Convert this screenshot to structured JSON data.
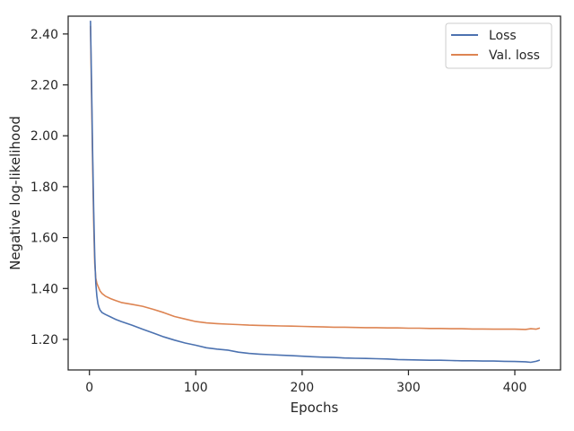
{
  "chart_data": {
    "type": "line",
    "xlabel": "Epochs",
    "ylabel": "Negative log-likelihood",
    "xlim": [
      -20,
      443
    ],
    "ylim": [
      1.08,
      2.47
    ],
    "x_ticks": [
      0,
      100,
      200,
      300,
      400
    ],
    "x_tick_labels": [
      "0",
      "100",
      "200",
      "300",
      "400"
    ],
    "y_ticks": [
      1.2,
      1.4,
      1.6,
      1.8,
      2.0,
      2.2,
      2.4
    ],
    "y_tick_labels": [
      "1.20",
      "1.40",
      "1.60",
      "1.80",
      "2.00",
      "2.20",
      "2.40"
    ],
    "grid": false,
    "legend_position": "top-right",
    "series": [
      {
        "name": "Loss",
        "color": "#4c72b0",
        "x": [
          1,
          2,
          3,
          4,
          5,
          6,
          7,
          8,
          9,
          10,
          12,
          15,
          20,
          25,
          30,
          40,
          50,
          60,
          70,
          80,
          90,
          100,
          110,
          120,
          130,
          140,
          150,
          160,
          170,
          180,
          190,
          200,
          210,
          220,
          230,
          240,
          250,
          260,
          270,
          280,
          290,
          300,
          310,
          320,
          330,
          340,
          350,
          360,
          370,
          380,
          390,
          400,
          410,
          415,
          420,
          423
        ],
        "y": [
          2.45,
          2.2,
          1.93,
          1.7,
          1.53,
          1.42,
          1.37,
          1.34,
          1.325,
          1.315,
          1.305,
          1.298,
          1.288,
          1.278,
          1.27,
          1.256,
          1.24,
          1.225,
          1.21,
          1.197,
          1.186,
          1.177,
          1.167,
          1.162,
          1.158,
          1.15,
          1.145,
          1.142,
          1.14,
          1.138,
          1.136,
          1.134,
          1.132,
          1.13,
          1.129,
          1.127,
          1.126,
          1.125,
          1.124,
          1.123,
          1.121,
          1.12,
          1.119,
          1.118,
          1.118,
          1.117,
          1.116,
          1.116,
          1.115,
          1.115,
          1.114,
          1.113,
          1.112,
          1.11,
          1.114,
          1.118
        ]
      },
      {
        "name": "Val. loss",
        "color": "#dd8452",
        "x": [
          1,
          2,
          3,
          4,
          5,
          6,
          7,
          8,
          9,
          10,
          12,
          15,
          20,
          25,
          30,
          40,
          50,
          60,
          70,
          80,
          90,
          100,
          110,
          120,
          130,
          140,
          150,
          160,
          170,
          180,
          190,
          200,
          210,
          220,
          230,
          240,
          250,
          260,
          270,
          280,
          290,
          300,
          310,
          320,
          330,
          340,
          350,
          360,
          370,
          380,
          390,
          400,
          410,
          415,
          420,
          423
        ],
        "y": [
          2.43,
          2.15,
          1.88,
          1.65,
          1.5,
          1.44,
          1.42,
          1.41,
          1.4,
          1.39,
          1.38,
          1.37,
          1.36,
          1.352,
          1.345,
          1.338,
          1.33,
          1.318,
          1.305,
          1.29,
          1.28,
          1.27,
          1.265,
          1.262,
          1.26,
          1.258,
          1.256,
          1.255,
          1.254,
          1.253,
          1.252,
          1.251,
          1.25,
          1.249,
          1.248,
          1.248,
          1.247,
          1.246,
          1.246,
          1.245,
          1.245,
          1.244,
          1.244,
          1.243,
          1.243,
          1.242,
          1.242,
          1.241,
          1.241,
          1.24,
          1.24,
          1.24,
          1.239,
          1.242,
          1.24,
          1.244
        ]
      }
    ]
  }
}
